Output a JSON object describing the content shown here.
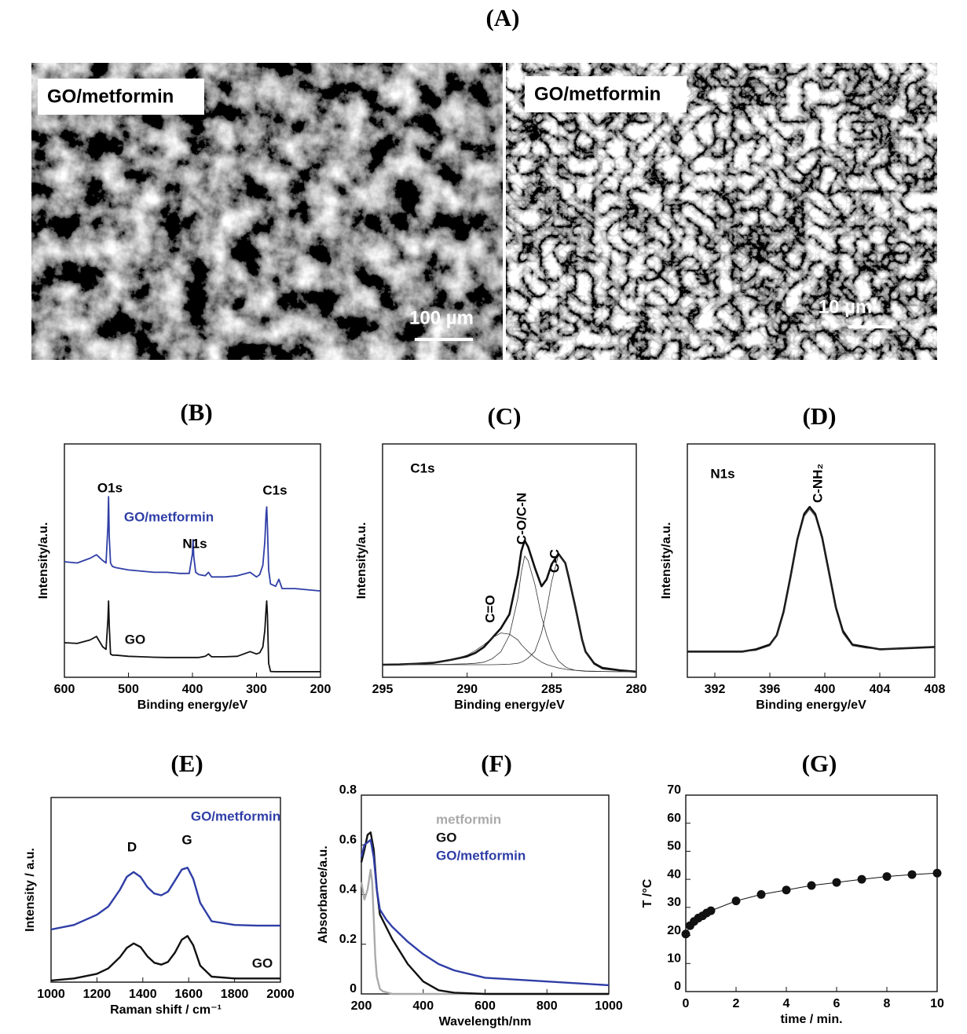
{
  "panel_a": {
    "label": "(A)",
    "images": [
      {
        "caption": "GO/metformin",
        "scale_bar": "100 µm"
      },
      {
        "caption": "GO/metformin",
        "scale_bar": "10 µm"
      }
    ]
  },
  "chart_data": [
    {
      "type": "line",
      "label": "(B)",
      "xlabel": "Binding energy/eV",
      "ylabel": "Intensity/a.u.",
      "xlim": [
        600,
        200
      ],
      "xticks": [
        600,
        500,
        400,
        300,
        200
      ],
      "ylim": [
        0,
        10
      ],
      "annotations": [
        "O1s",
        "N1s",
        "C1s"
      ],
      "x": [
        600,
        580,
        560,
        550,
        540,
        535,
        532,
        531,
        530,
        528,
        525,
        520,
        500,
        480,
        460,
        440,
        420,
        405,
        400,
        399,
        398,
        395,
        390,
        380,
        375,
        370,
        350,
        330,
        310,
        300,
        295,
        290,
        287,
        285,
        284,
        283,
        281,
        278,
        270,
        265,
        260,
        240,
        220,
        200
      ],
      "series": [
        {
          "name": "GO/metformin",
          "color": "#2f3ea6",
          "linewidth": 1.8,
          "values": [
            4.95,
            4.9,
            5.1,
            5.25,
            5.0,
            4.9,
            6.5,
            7.74,
            6.0,
            4.9,
            4.75,
            4.7,
            4.6,
            4.55,
            4.5,
            4.5,
            4.45,
            4.45,
            5.3,
            5.9,
            5.2,
            4.5,
            4.4,
            4.35,
            4.5,
            4.3,
            4.3,
            4.35,
            4.5,
            4.3,
            4.4,
            4.8,
            5.8,
            7.0,
            7.3,
            6.5,
            4.6,
            4.0,
            3.9,
            4.2,
            3.8,
            3.8,
            3.75,
            3.7
          ]
        },
        {
          "name": "GO",
          "color": "#111111",
          "linewidth": 1.8,
          "values": [
            1.48,
            1.45,
            1.6,
            1.75,
            1.3,
            1.2,
            2.5,
            3.27,
            2.2,
            1.0,
            0.95,
            0.95,
            0.9,
            0.88,
            0.86,
            0.85,
            0.85,
            0.85,
            0.85,
            0.85,
            0.85,
            0.85,
            0.85,
            0.9,
            1.0,
            0.88,
            0.88,
            0.9,
            1.1,
            1.0,
            1.05,
            1.3,
            2.0,
            2.9,
            3.27,
            2.7,
            0.6,
            0.25,
            0.24,
            0.24,
            0.24,
            0.24,
            0.24,
            0.24
          ]
        }
      ]
    },
    {
      "type": "line",
      "label": "(C)",
      "xlabel": "Binding energy/eV",
      "ylabel": "Intensity/a.u.",
      "xlim": [
        295,
        280
      ],
      "xticks": [
        295,
        290,
        285,
        280
      ],
      "ylim": [
        0,
        10
      ],
      "annotations": [
        "C1s",
        "C=O",
        "C-O/C-N",
        "C-C"
      ],
      "x": [
        295,
        294,
        293,
        292,
        291,
        290,
        289.5,
        289,
        288.5,
        288,
        287.5,
        287,
        286.8,
        286.6,
        286.4,
        286,
        285.6,
        285.3,
        285,
        284.6,
        284.2,
        284,
        283.6,
        283.2,
        283,
        282.5,
        282,
        281,
        280
      ],
      "series": [
        {
          "color": "#111111",
          "linewidth": 2.6,
          "values": [
            0.54,
            0.55,
            0.58,
            0.62,
            0.74,
            0.9,
            1.05,
            1.3,
            1.7,
            2.1,
            2.7,
            4.4,
            5.4,
            5.86,
            5.6,
            4.7,
            3.9,
            4.2,
            4.85,
            5.29,
            4.9,
            4.3,
            3.0,
            1.6,
            1.1,
            0.6,
            0.4,
            0.3,
            0.24
          ]
        },
        {
          "color": "#333333",
          "linewidth": 0.8,
          "values": [
            0.54,
            0.55,
            0.58,
            0.62,
            0.72,
            0.95,
            1.15,
            1.4,
            1.7,
            1.9,
            1.85,
            1.6,
            1.4,
            1.25,
            1.1,
            0.85,
            0.65,
            0.55,
            0.48,
            0.4,
            0.35,
            0.32,
            0.3,
            0.28,
            0.27,
            0.26,
            0.25,
            0.24,
            0.24
          ]
        },
        {
          "color": "#333333",
          "linewidth": 0.8,
          "values": [
            0.54,
            0.54,
            0.55,
            0.55,
            0.56,
            0.58,
            0.6,
            0.65,
            0.8,
            1.1,
            1.8,
            3.4,
            4.5,
            5.2,
            5.0,
            4.0,
            2.6,
            1.8,
            1.2,
            0.7,
            0.45,
            0.38,
            0.3,
            0.27,
            0.26,
            0.25,
            0.25,
            0.24,
            0.24
          ]
        },
        {
          "color": "#333333",
          "linewidth": 0.8,
          "values": [
            0.54,
            0.54,
            0.54,
            0.54,
            0.54,
            0.54,
            0.54,
            0.54,
            0.54,
            0.55,
            0.56,
            0.6,
            0.65,
            0.72,
            0.82,
            1.1,
            1.9,
            2.9,
            4.1,
            5.25,
            4.9,
            4.3,
            3.0,
            1.6,
            1.1,
            0.55,
            0.35,
            0.27,
            0.24
          ]
        }
      ]
    },
    {
      "type": "line",
      "label": "(D)",
      "xlabel": "Binding energy/eV",
      "ylabel": "Intensity/a.u.",
      "xlim": [
        390,
        408
      ],
      "xticks": [
        392,
        396,
        400,
        404,
        408
      ],
      "ylim": [
        0,
        10
      ],
      "annotations": [
        "N1s",
        "C-NH₂"
      ],
      "x": [
        390,
        392,
        394,
        395,
        396,
        396.5,
        397,
        397.5,
        398,
        398.5,
        398.9,
        399.3,
        399.8,
        400.3,
        400.8,
        401.3,
        402,
        403,
        404,
        406,
        408
      ],
      "series": [
        {
          "color": "#111111",
          "linewidth": 2.6,
          "values": [
            1.1,
            1.1,
            1.1,
            1.2,
            1.4,
            1.8,
            2.8,
            4.3,
            5.9,
            7.0,
            7.3,
            7.0,
            6.0,
            4.5,
            3.0,
            2.0,
            1.4,
            1.3,
            1.2,
            1.25,
            1.3
          ]
        },
        {
          "color": "#333333",
          "linewidth": 0.8,
          "values": [
            1.1,
            1.1,
            1.1,
            1.15,
            1.35,
            1.8,
            2.7,
            4.2,
            5.8,
            6.9,
            7.2,
            6.9,
            5.9,
            4.4,
            2.9,
            1.9,
            1.35,
            1.25,
            1.2,
            1.25,
            1.3
          ]
        }
      ]
    },
    {
      "type": "line",
      "label": "(E)",
      "xlabel": "Raman shift / cm⁻¹",
      "ylabel": "Intensity / a.u.",
      "xlim": [
        1000,
        2000
      ],
      "xticks": [
        1000,
        1200,
        1400,
        1600,
        1800,
        2000
      ],
      "ylim": [
        0,
        10
      ],
      "annotations": [
        "D",
        "G"
      ],
      "x": [
        1000,
        1100,
        1200,
        1250,
        1300,
        1330,
        1360,
        1390,
        1420,
        1450,
        1480,
        1510,
        1540,
        1570,
        1595,
        1620,
        1650,
        1700,
        1800,
        1900,
        2000
      ],
      "series": [
        {
          "name": "GO/metformin",
          "color": "#2f3ea6",
          "linewidth": 2.4,
          "values": [
            2.85,
            3.1,
            3.65,
            4.1,
            5.0,
            5.7,
            5.96,
            5.7,
            5.15,
            4.8,
            4.7,
            4.9,
            5.5,
            6.1,
            6.2,
            5.6,
            4.3,
            3.3,
            3.1,
            3.06,
            3.06
          ]
        },
        {
          "name": "GO",
          "color": "#111111",
          "linewidth": 2.4,
          "values": [
            0.09,
            0.2,
            0.45,
            0.75,
            1.35,
            1.85,
            2.1,
            1.9,
            1.4,
            1.05,
            0.95,
            1.1,
            1.6,
            2.3,
            2.5,
            2.0,
            0.9,
            0.3,
            0.2,
            0.2,
            0.2
          ]
        }
      ]
    },
    {
      "type": "line",
      "label": "(F)",
      "xlabel": "Wavelength/nm",
      "ylabel": "Absorbance/a.u.",
      "xlim": [
        200,
        1000
      ],
      "xticks": [
        200,
        400,
        600,
        800,
        1000
      ],
      "ylim": [
        0,
        0.8
      ],
      "yticks": [
        0,
        0.2,
        0.4,
        0.6,
        0.8
      ],
      "series": [
        {
          "name": "metformin",
          "color": "#aaaaaa",
          "linewidth": 2.4,
          "x": [
            200,
            210,
            220,
            230,
            235,
            240,
            245,
            250,
            260,
            270,
            300,
            400,
            1000
          ],
          "values": [
            0.45,
            0.38,
            0.42,
            0.5,
            0.45,
            0.3,
            0.15,
            0.07,
            0.02,
            0.01,
            0,
            0,
            0
          ]
        },
        {
          "name": "GO",
          "color": "#111111",
          "linewidth": 2.4,
          "x": [
            200,
            210,
            220,
            230,
            240,
            250,
            260,
            280,
            300,
            350,
            400,
            450,
            500,
            600,
            1000
          ],
          "values": [
            0.53,
            0.58,
            0.64,
            0.65,
            0.58,
            0.42,
            0.32,
            0.27,
            0.22,
            0.12,
            0.05,
            0.015,
            0.005,
            0,
            0
          ]
        },
        {
          "name": "GO/metformin",
          "color": "#2f3ea6",
          "linewidth": 2.4,
          "x": [
            200,
            210,
            220,
            230,
            240,
            250,
            260,
            280,
            300,
            350,
            400,
            450,
            500,
            600,
            1000
          ],
          "values": [
            0.55,
            0.6,
            0.61,
            0.62,
            0.55,
            0.42,
            0.34,
            0.3,
            0.27,
            0.21,
            0.16,
            0.12,
            0.095,
            0.065,
            0.035
          ]
        }
      ]
    },
    {
      "type": "scatter",
      "label": "(G)",
      "xlabel": "time / min.",
      "ylabel": "T /°C",
      "xlim": [
        0,
        10
      ],
      "xticks": [
        0,
        2,
        4,
        6,
        8,
        10
      ],
      "ylim": [
        0,
        70
      ],
      "yticks": [
        0,
        10,
        20,
        30,
        40,
        50,
        60,
        70
      ],
      "fit_line": true,
      "color": "#111111",
      "x": [
        0,
        0.17,
        0.33,
        0.5,
        0.67,
        0.83,
        1,
        2,
        3,
        4,
        5,
        6,
        7,
        8,
        9,
        10
      ],
      "values": [
        20.5,
        23.5,
        25,
        26.2,
        27,
        28,
        28.8,
        32.3,
        34.6,
        36.2,
        37.8,
        38.9,
        40,
        41,
        41.7,
        42.2
      ]
    }
  ]
}
